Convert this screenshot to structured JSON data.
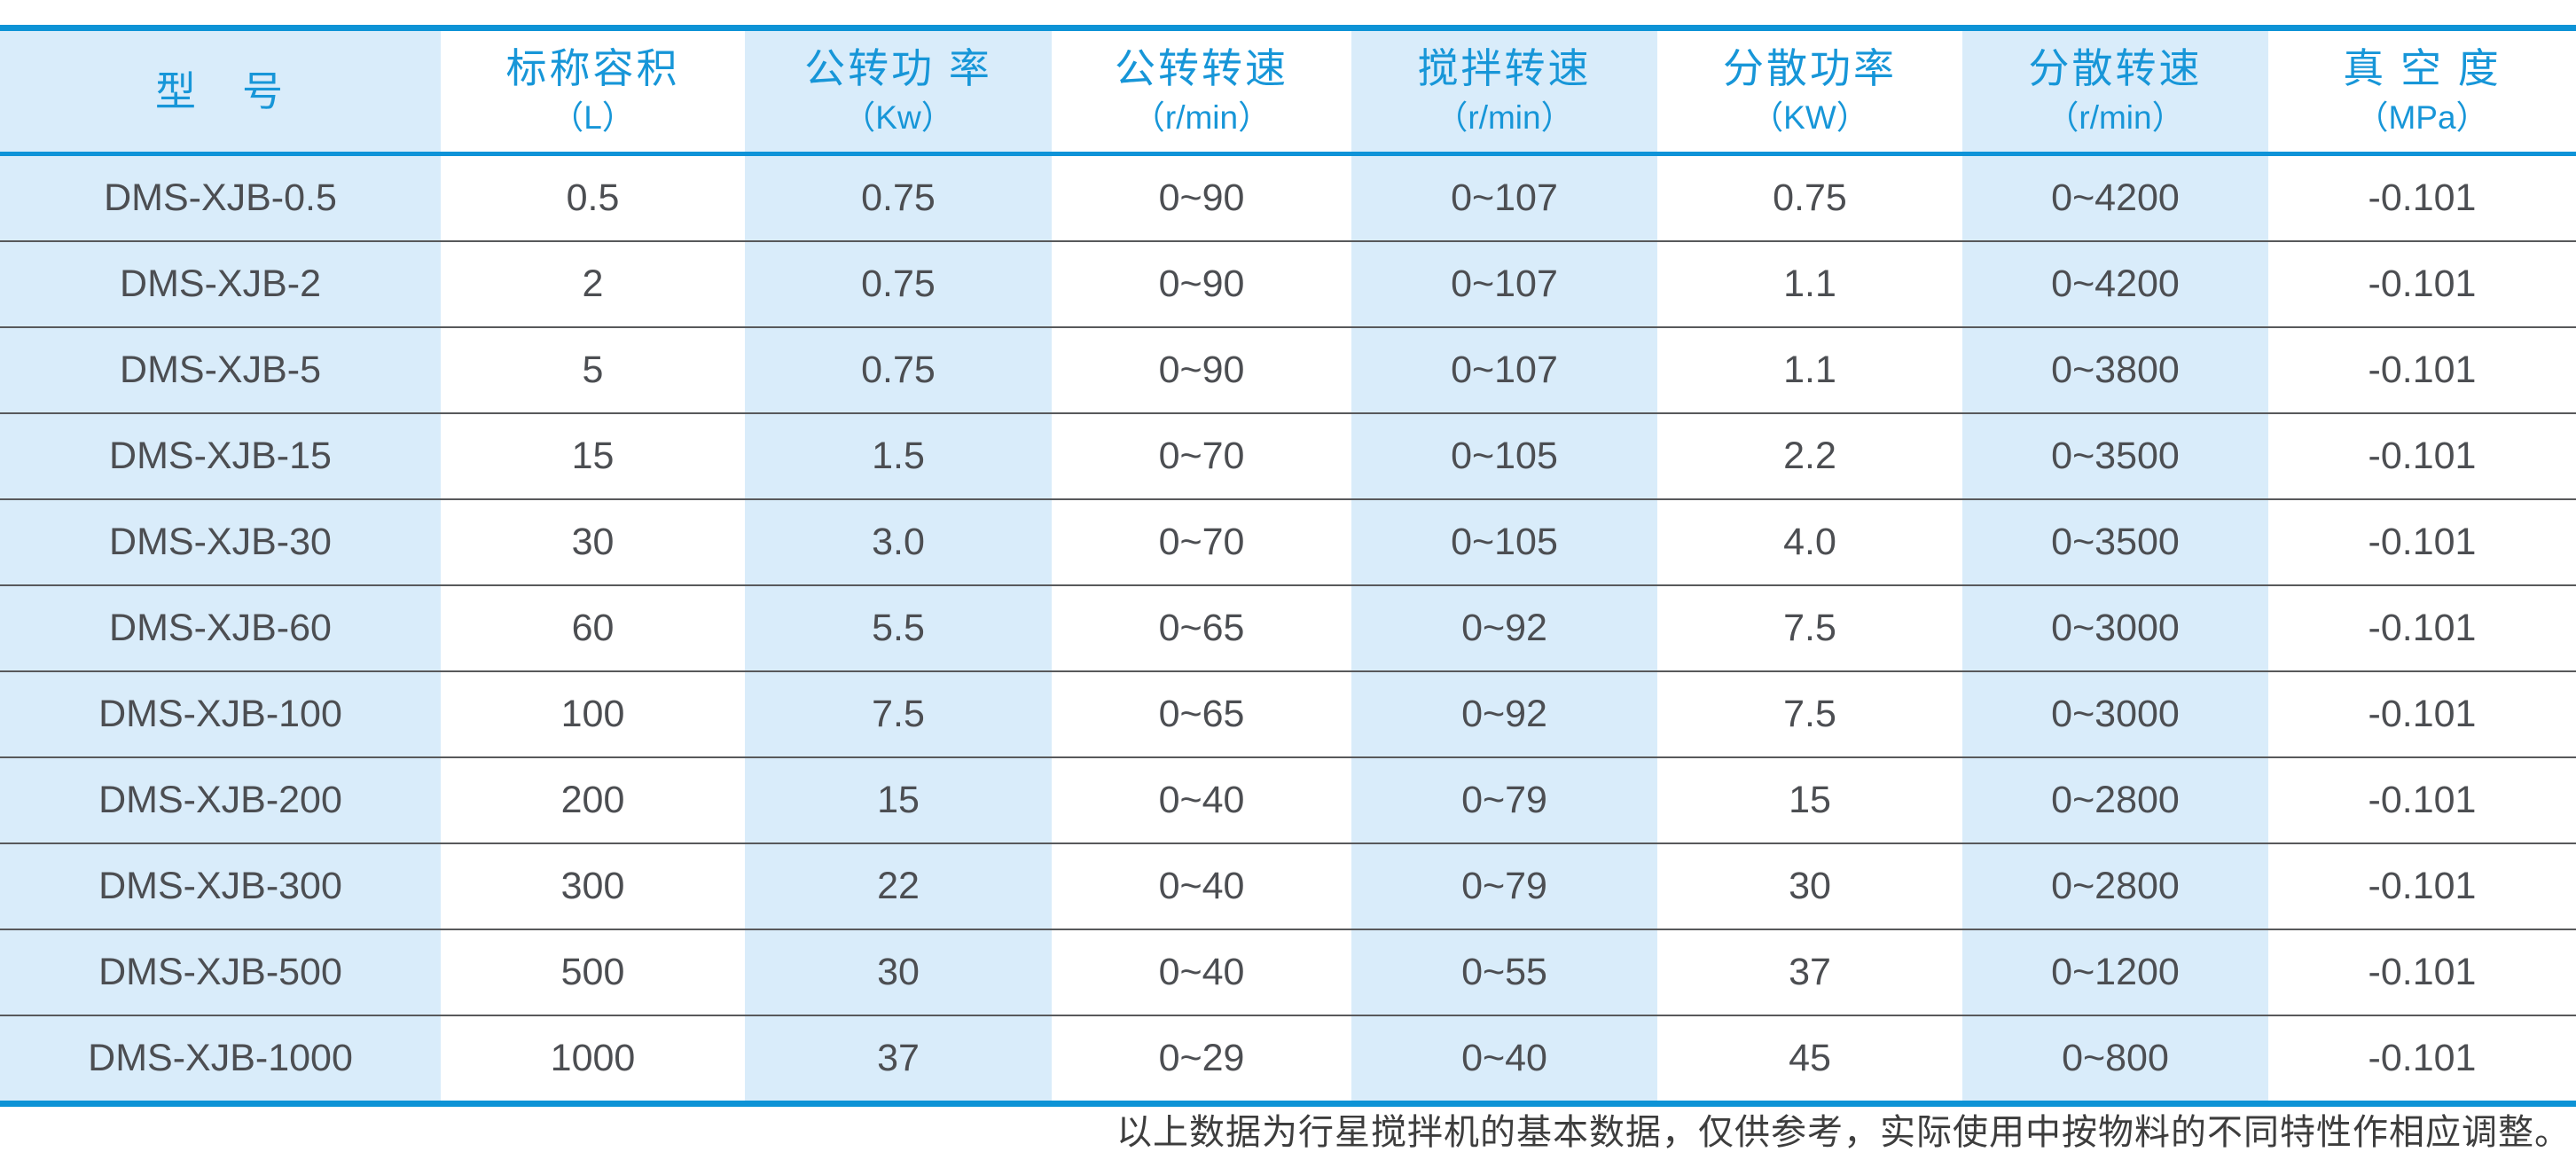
{
  "table": {
    "columns": [
      {
        "title": "型　号",
        "unit": ""
      },
      {
        "title": "标称容积",
        "unit": "（L）"
      },
      {
        "title": "公转功 率",
        "unit": "（Kw）"
      },
      {
        "title": "公转转速",
        "unit": "（r/min）"
      },
      {
        "title": "搅拌转速",
        "unit": "（r/min）"
      },
      {
        "title": "分散功率",
        "unit": "（KW）"
      },
      {
        "title": "分散转速",
        "unit": "（r/min）"
      },
      {
        "title": "真 空 度",
        "unit": "（MPa）"
      }
    ],
    "rows": [
      [
        "DMS-XJB-0.5",
        "0.5",
        "0.75",
        "0~90",
        "0~107",
        "0.75",
        "0~4200",
        "-0.101"
      ],
      [
        "DMS-XJB-2",
        "2",
        "0.75",
        "0~90",
        "0~107",
        "1.1",
        "0~4200",
        "-0.101"
      ],
      [
        "DMS-XJB-5",
        "5",
        "0.75",
        "0~90",
        "0~107",
        "1.1",
        "0~3800",
        "-0.101"
      ],
      [
        "DMS-XJB-15",
        "15",
        "1.5",
        "0~70",
        "0~105",
        "2.2",
        "0~3500",
        "-0.101"
      ],
      [
        "DMS-XJB-30",
        "30",
        "3.0",
        "0~70",
        "0~105",
        "4.0",
        "0~3500",
        "-0.101"
      ],
      [
        "DMS-XJB-60",
        "60",
        "5.5",
        "0~65",
        "0~92",
        "7.5",
        "0~3000",
        "-0.101"
      ],
      [
        "DMS-XJB-100",
        "100",
        "7.5",
        "0~65",
        "0~92",
        "7.5",
        "0~3000",
        "-0.101"
      ],
      [
        "DMS-XJB-200",
        "200",
        "15",
        "0~40",
        "0~79",
        "15",
        "0~2800",
        "-0.101"
      ],
      [
        "DMS-XJB-300",
        "300",
        "22",
        "0~40",
        "0~79",
        "30",
        "0~2800",
        "-0.101"
      ],
      [
        "DMS-XJB-500",
        "500",
        "30",
        "0~40",
        "0~55",
        "37",
        "0~1200",
        "-0.101"
      ],
      [
        "DMS-XJB-1000",
        "1000",
        "37",
        "0~29",
        "0~40",
        "45",
        "0~800",
        "-0.101"
      ]
    ],
    "shaded_column_indexes": [
      0,
      2,
      4,
      6
    ]
  },
  "footnote": "以上数据为行星搅拌机的基本数据，仅供参考，实际使用中按物料的不同特性作相应调整。",
  "colors": {
    "accent_blue": "#0d93d6",
    "header_text_blue": "#1796d8",
    "shaded_column_bg": "#d9ecfa",
    "row_separator": "#58595b",
    "cell_text": "#4c4e52",
    "footnote_text": "#3d3d3d"
  }
}
